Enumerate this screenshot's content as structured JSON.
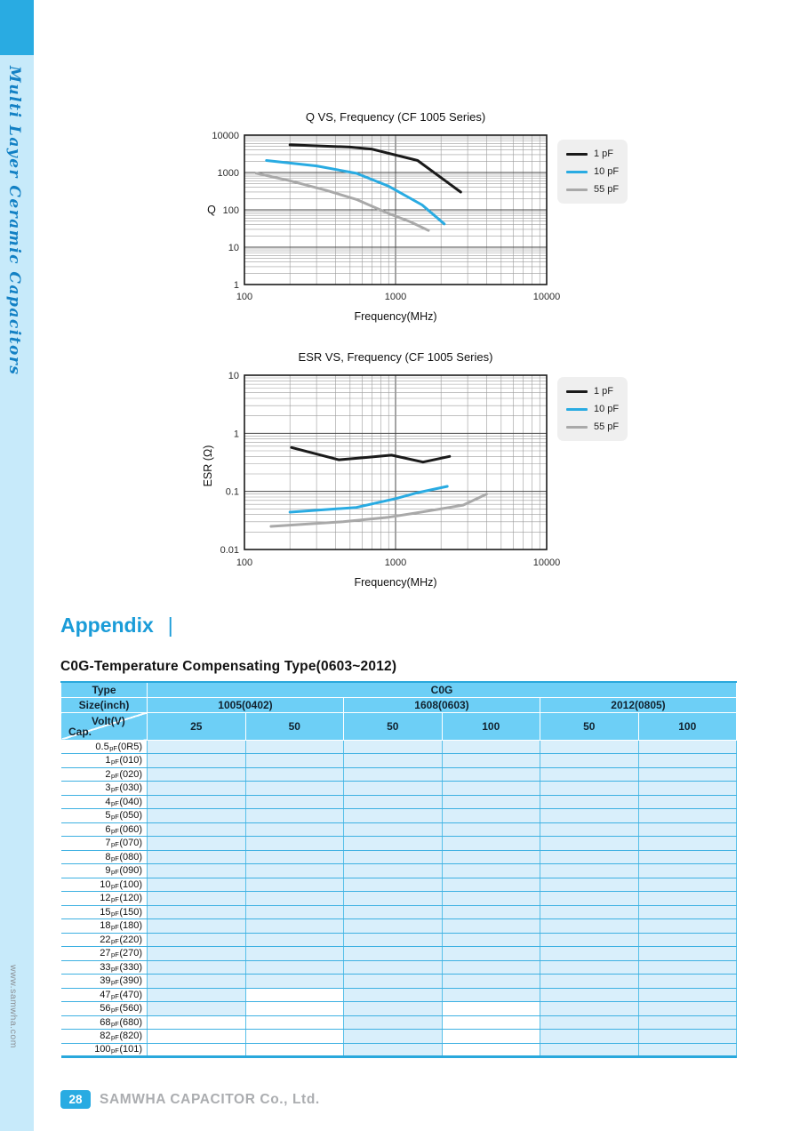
{
  "sidebar": {
    "title": "Multi Layer Ceramic Capacitors",
    "website": "www.samwha.com"
  },
  "appendix": {
    "heading": "Appendix",
    "separator": "|"
  },
  "section": {
    "title": "C0G-Temperature Compensating Type(0603~2012)"
  },
  "colors": {
    "accent": "#29ABE2",
    "header_cell": "#6DCFF6",
    "row_fill": "#D9EFFB",
    "sidebar_strip": "#C7EAFA",
    "legend_bg": "#EFEFEF"
  },
  "chart_data": [
    {
      "type": "line",
      "title": "Q VS, Frequency (CF 1005 Series)",
      "xlabel": "Frequency(MHz)",
      "ylabel": "Q",
      "xscale": "log",
      "yscale": "log",
      "xlim": [
        100,
        10000
      ],
      "ylim": [
        1,
        10000
      ],
      "xticks": [
        100,
        1000,
        10000
      ],
      "yticks": [
        10000,
        1000,
        100,
        10,
        1
      ],
      "grid": true,
      "legend_position": "right",
      "series": [
        {
          "name": "1 pF",
          "color": "#1A1A1A",
          "points": [
            [
              200,
              5500
            ],
            [
              500,
              4800
            ],
            [
              700,
              4200
            ],
            [
              1400,
              2100
            ],
            [
              2700,
              300
            ]
          ]
        },
        {
          "name": "10 pF",
          "color": "#29ABE2",
          "points": [
            [
              140,
              2100
            ],
            [
              300,
              1500
            ],
            [
              550,
              950
            ],
            [
              900,
              430
            ],
            [
              1500,
              135
            ],
            [
              2100,
              42
            ]
          ]
        },
        {
          "name": "55 pF",
          "color": "#A9A9A9",
          "points": [
            [
              120,
              950
            ],
            [
              200,
              600
            ],
            [
              350,
              330
            ],
            [
              550,
              190
            ],
            [
              900,
              80
            ],
            [
              1250,
              48
            ],
            [
              1650,
              28
            ]
          ]
        }
      ]
    },
    {
      "type": "line",
      "title": "ESR VS, Frequency (CF 1005 Series)",
      "xlabel": "Frequency(MHz)",
      "ylabel": "ESR (Ω)",
      "xscale": "log",
      "yscale": "log",
      "xlim": [
        100,
        10000
      ],
      "ylim": [
        0.01,
        10
      ],
      "xticks": [
        100,
        1000,
        10000
      ],
      "yticks": [
        10,
        1,
        0.1,
        0.01
      ],
      "grid": true,
      "legend_position": "right",
      "series": [
        {
          "name": "1 pF",
          "color": "#1A1A1A",
          "points": [
            [
              205,
              0.57
            ],
            [
              420,
              0.35
            ],
            [
              650,
              0.385
            ],
            [
              940,
              0.42
            ],
            [
              1520,
              0.32
            ],
            [
              2280,
              0.4
            ]
          ]
        },
        {
          "name": "10 pF",
          "color": "#29ABE2",
          "points": [
            [
              200,
              0.044
            ],
            [
              550,
              0.053
            ],
            [
              1000,
              0.075
            ],
            [
              1400,
              0.095
            ],
            [
              2200,
              0.122
            ]
          ]
        },
        {
          "name": "55 pF",
          "color": "#A9A9A9",
          "points": [
            [
              150,
              0.025
            ],
            [
              450,
              0.03
            ],
            [
              900,
              0.036
            ],
            [
              1400,
              0.043
            ],
            [
              2800,
              0.058
            ],
            [
              4000,
              0.09
            ]
          ]
        }
      ]
    }
  ],
  "table": {
    "type_label": "Type",
    "type_value": "C0G",
    "size_label": "Size(inch)",
    "sizes": [
      "1005(0402)",
      "1608(0603)",
      "2012(0805)"
    ],
    "volt_label": "Volt(V)",
    "cap_label": "Cap.",
    "volts": [
      "25",
      "50",
      "50",
      "100",
      "50",
      "100"
    ],
    "rows": [
      {
        "cap": "0.5",
        "unit": "pF",
        "code": "(0R5)",
        "white_cols": []
      },
      {
        "cap": "1",
        "unit": "pF",
        "code": "(010)",
        "white_cols": []
      },
      {
        "cap": "2",
        "unit": "pF",
        "code": "(020)",
        "white_cols": []
      },
      {
        "cap": "3",
        "unit": "pF",
        "code": "(030)",
        "white_cols": []
      },
      {
        "cap": "4",
        "unit": "pF",
        "code": "(040)",
        "white_cols": []
      },
      {
        "cap": "5",
        "unit": "pF",
        "code": "(050)",
        "white_cols": []
      },
      {
        "cap": "6",
        "unit": "pF",
        "code": "(060)",
        "white_cols": []
      },
      {
        "cap": "7",
        "unit": "pF",
        "code": "(070)",
        "white_cols": []
      },
      {
        "cap": "8",
        "unit": "pF",
        "code": "(080)",
        "white_cols": []
      },
      {
        "cap": "9",
        "unit": "pF",
        "code": "(090)",
        "white_cols": []
      },
      {
        "cap": "10",
        "unit": "pF",
        "code": "(100)",
        "white_cols": []
      },
      {
        "cap": "12",
        "unit": "pF",
        "code": "(120)",
        "white_cols": []
      },
      {
        "cap": "15",
        "unit": "pF",
        "code": "(150)",
        "white_cols": []
      },
      {
        "cap": "18",
        "unit": "pF",
        "code": "(180)",
        "white_cols": []
      },
      {
        "cap": "22",
        "unit": "pF",
        "code": "(220)",
        "white_cols": []
      },
      {
        "cap": "27",
        "unit": "pF",
        "code": "(270)",
        "white_cols": []
      },
      {
        "cap": "33",
        "unit": "pF",
        "code": "(330)",
        "white_cols": []
      },
      {
        "cap": "39",
        "unit": "pF",
        "code": "(390)",
        "white_cols": []
      },
      {
        "cap": "47",
        "unit": "pF",
        "code": "(470)",
        "white_cols": [
          1
        ]
      },
      {
        "cap": "56",
        "unit": "pF",
        "code": "(560)",
        "white_cols": [
          1,
          3
        ]
      },
      {
        "cap": "68",
        "unit": "pF",
        "code": "(680)",
        "white_cols": [
          0,
          1,
          3
        ]
      },
      {
        "cap": "82",
        "unit": "pF",
        "code": "(820)",
        "white_cols": [
          0,
          1,
          3
        ]
      },
      {
        "cap": "100",
        "unit": "pF",
        "code": "(101)",
        "white_cols": [
          0,
          1,
          3
        ]
      }
    ]
  },
  "footer": {
    "page_number": "28",
    "company": "SAMWHA CAPACITOR Co., Ltd."
  }
}
